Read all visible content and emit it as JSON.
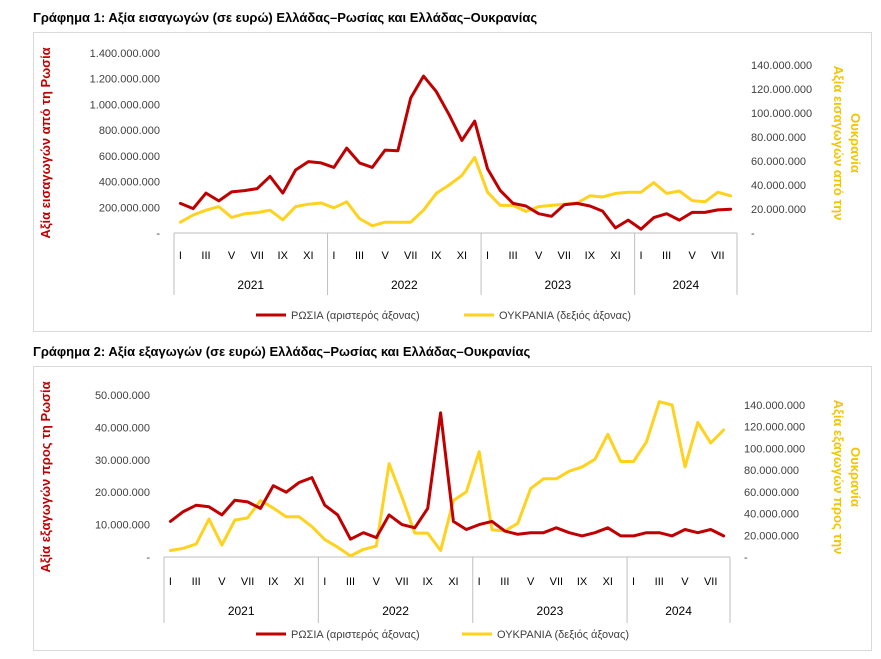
{
  "chart1_title": "Γράφημα 1: Αξία εισαγωγών (σε ευρώ) Ελλάδας–Ρωσίας και Ελλάδας–Ουκρανίας",
  "chart2_title": "Γράφημα 2: Αξία εξαγωγών (σε ευρώ) Ελλάδας–Ρωσίας και Ελλάδας–Ουκρανίας",
  "colors": {
    "russia": "#c00000",
    "ukraine": "#ffd21f",
    "axis": "#bfbfbf"
  },
  "chart_data": [
    {
      "type": "line",
      "title": "Γράφημα 1: Αξία εισαγωγών (σε ευρώ) Ελλάδας–Ρωσίας και Ελλάδας–Ουκρανίας",
      "ylabel_left": "Αξία εισαγωγών από τη Ρωσία",
      "ylabel_right_lines": [
        "Αξία εισαγωγών από την",
        "Ουκρανία"
      ],
      "ylim_left": [
        0,
        1400000000
      ],
      "ylim_right": [
        0,
        140000000
      ],
      "yticks_left": [
        "-",
        "200.000.000",
        "400.000.000",
        "600.000.000",
        "800.000.000",
        "1.000.000.000",
        "1.200.000.000",
        "1.400.000.000"
      ],
      "yticks_right": [
        "-",
        "20.000.000",
        "40.000.000",
        "60.000.000",
        "80.000.000",
        "100.000.000",
        "120.000.000",
        "140.000.000"
      ],
      "month_ticks": [
        "I",
        "III",
        "V",
        "VII",
        "IX",
        "XI",
        "I",
        "III",
        "V",
        "VII",
        "IX",
        "XI",
        "I",
        "III",
        "V",
        "VII",
        "IX",
        "XI",
        "I",
        "III",
        "V",
        "VII"
      ],
      "years": [
        "2021",
        "2022",
        "2023",
        "2024"
      ],
      "months_per_year": [
        12,
        12,
        12,
        8
      ],
      "legend_position": "bottom",
      "series": [
        {
          "name": "ΡΩΣΙΑ (αριστερός άξονας)",
          "axis": "left",
          "values": [
            230000000,
            190000000,
            310000000,
            250000000,
            320000000,
            330000000,
            345000000,
            440000000,
            310000000,
            490000000,
            555000000,
            545000000,
            510000000,
            660000000,
            545000000,
            510000000,
            645000000,
            640000000,
            1050000000,
            1220000000,
            1100000000,
            920000000,
            720000000,
            870000000,
            500000000,
            330000000,
            230000000,
            210000000,
            150000000,
            130000000,
            220000000,
            230000000,
            210000000,
            170000000,
            40000000,
            100000000,
            30000000,
            120000000,
            150000000,
            100000000,
            160000000,
            160000000,
            180000000,
            185000000
          ]
        },
        {
          "name": "ΟΥΚΡΑΝΙΑ (δεξιός άξονας)",
          "axis": "right",
          "values": [
            9000000,
            15000000,
            19000000,
            22000000,
            13000000,
            16000000,
            17000000,
            19000000,
            11000000,
            22000000,
            24000000,
            25000000,
            21000000,
            26000000,
            12000000,
            6000000,
            9000000,
            9000000,
            9000000,
            19000000,
            33000000,
            40000000,
            48000000,
            63000000,
            34000000,
            23000000,
            23000000,
            18000000,
            22000000,
            23000000,
            24000000,
            25000000,
            31000000,
            30000000,
            33000000,
            34000000,
            34000000,
            42000000,
            33000000,
            35000000,
            27000000,
            26000000,
            34000000,
            31000000
          ]
        }
      ]
    },
    {
      "type": "line",
      "title": "Γράφημα 2: Αξία εξαγωγών (σε ευρώ) Ελλάδας–Ρωσίας και Ελλάδας–Ουκρανίας",
      "ylabel_left": "Αξία εξαγωγών προς τη Ρωσία",
      "ylabel_right_lines": [
        "Αξία εξαγωγών προς την",
        "Ουκρανία"
      ],
      "ylim_left": [
        0,
        50000000
      ],
      "ylim_right": [
        0,
        140000000
      ],
      "yticks_left": [
        "-",
        "10.000.000",
        "20.000.000",
        "30.000.000",
        "40.000.000",
        "50.000.000"
      ],
      "yticks_right": [
        "-",
        "20.000.000",
        "40.000.000",
        "60.000.000",
        "80.000.000",
        "100.000.000",
        "120.000.000",
        "140.000.000"
      ],
      "month_ticks": [
        "I",
        "III",
        "V",
        "VII",
        "IX",
        "XI",
        "I",
        "III",
        "V",
        "VII",
        "IX",
        "XI",
        "I",
        "III",
        "V",
        "VII",
        "IX",
        "XI",
        "I",
        "III",
        "V",
        "VII"
      ],
      "years": [
        "2021",
        "2022",
        "2023",
        "2024"
      ],
      "months_per_year": [
        12,
        12,
        12,
        8
      ],
      "legend_position": "bottom",
      "series": [
        {
          "name": "ΡΩΣΙΑ (αριστερός άξονας)",
          "axis": "left",
          "values": [
            11000000,
            14000000,
            16000000,
            15500000,
            13000000,
            17500000,
            17000000,
            15000000,
            22000000,
            20000000,
            23000000,
            24500000,
            16000000,
            13000000,
            5500000,
            7500000,
            6000000,
            13000000,
            10000000,
            9000000,
            15000000,
            44500000,
            11000000,
            8500000,
            10000000,
            11000000,
            8000000,
            7000000,
            7500000,
            7500000,
            9000000,
            7500000,
            6500000,
            7500000,
            9000000,
            6500000,
            6500000,
            7500000,
            7500000,
            6500000,
            8500000,
            7500000,
            8500000,
            6500000
          ]
        },
        {
          "name": "ΟΥΚΡΑΝΙΑ (δεξιός άξονας)",
          "axis": "right",
          "values": [
            6000000,
            8000000,
            12000000,
            35000000,
            11000000,
            34000000,
            36000000,
            52000000,
            45000000,
            37000000,
            37000000,
            28000000,
            16000000,
            9000000,
            1000000,
            7000000,
            10000000,
            86000000,
            55000000,
            22000000,
            22000000,
            6000000,
            52000000,
            60000000,
            97000000,
            25000000,
            24000000,
            31000000,
            63000000,
            72000000,
            72000000,
            79000000,
            83000000,
            90000000,
            113000000,
            88000000,
            88000000,
            106000000,
            143000000,
            140000000,
            83000000,
            124000000,
            105000000,
            117000000
          ]
        }
      ]
    }
  ]
}
